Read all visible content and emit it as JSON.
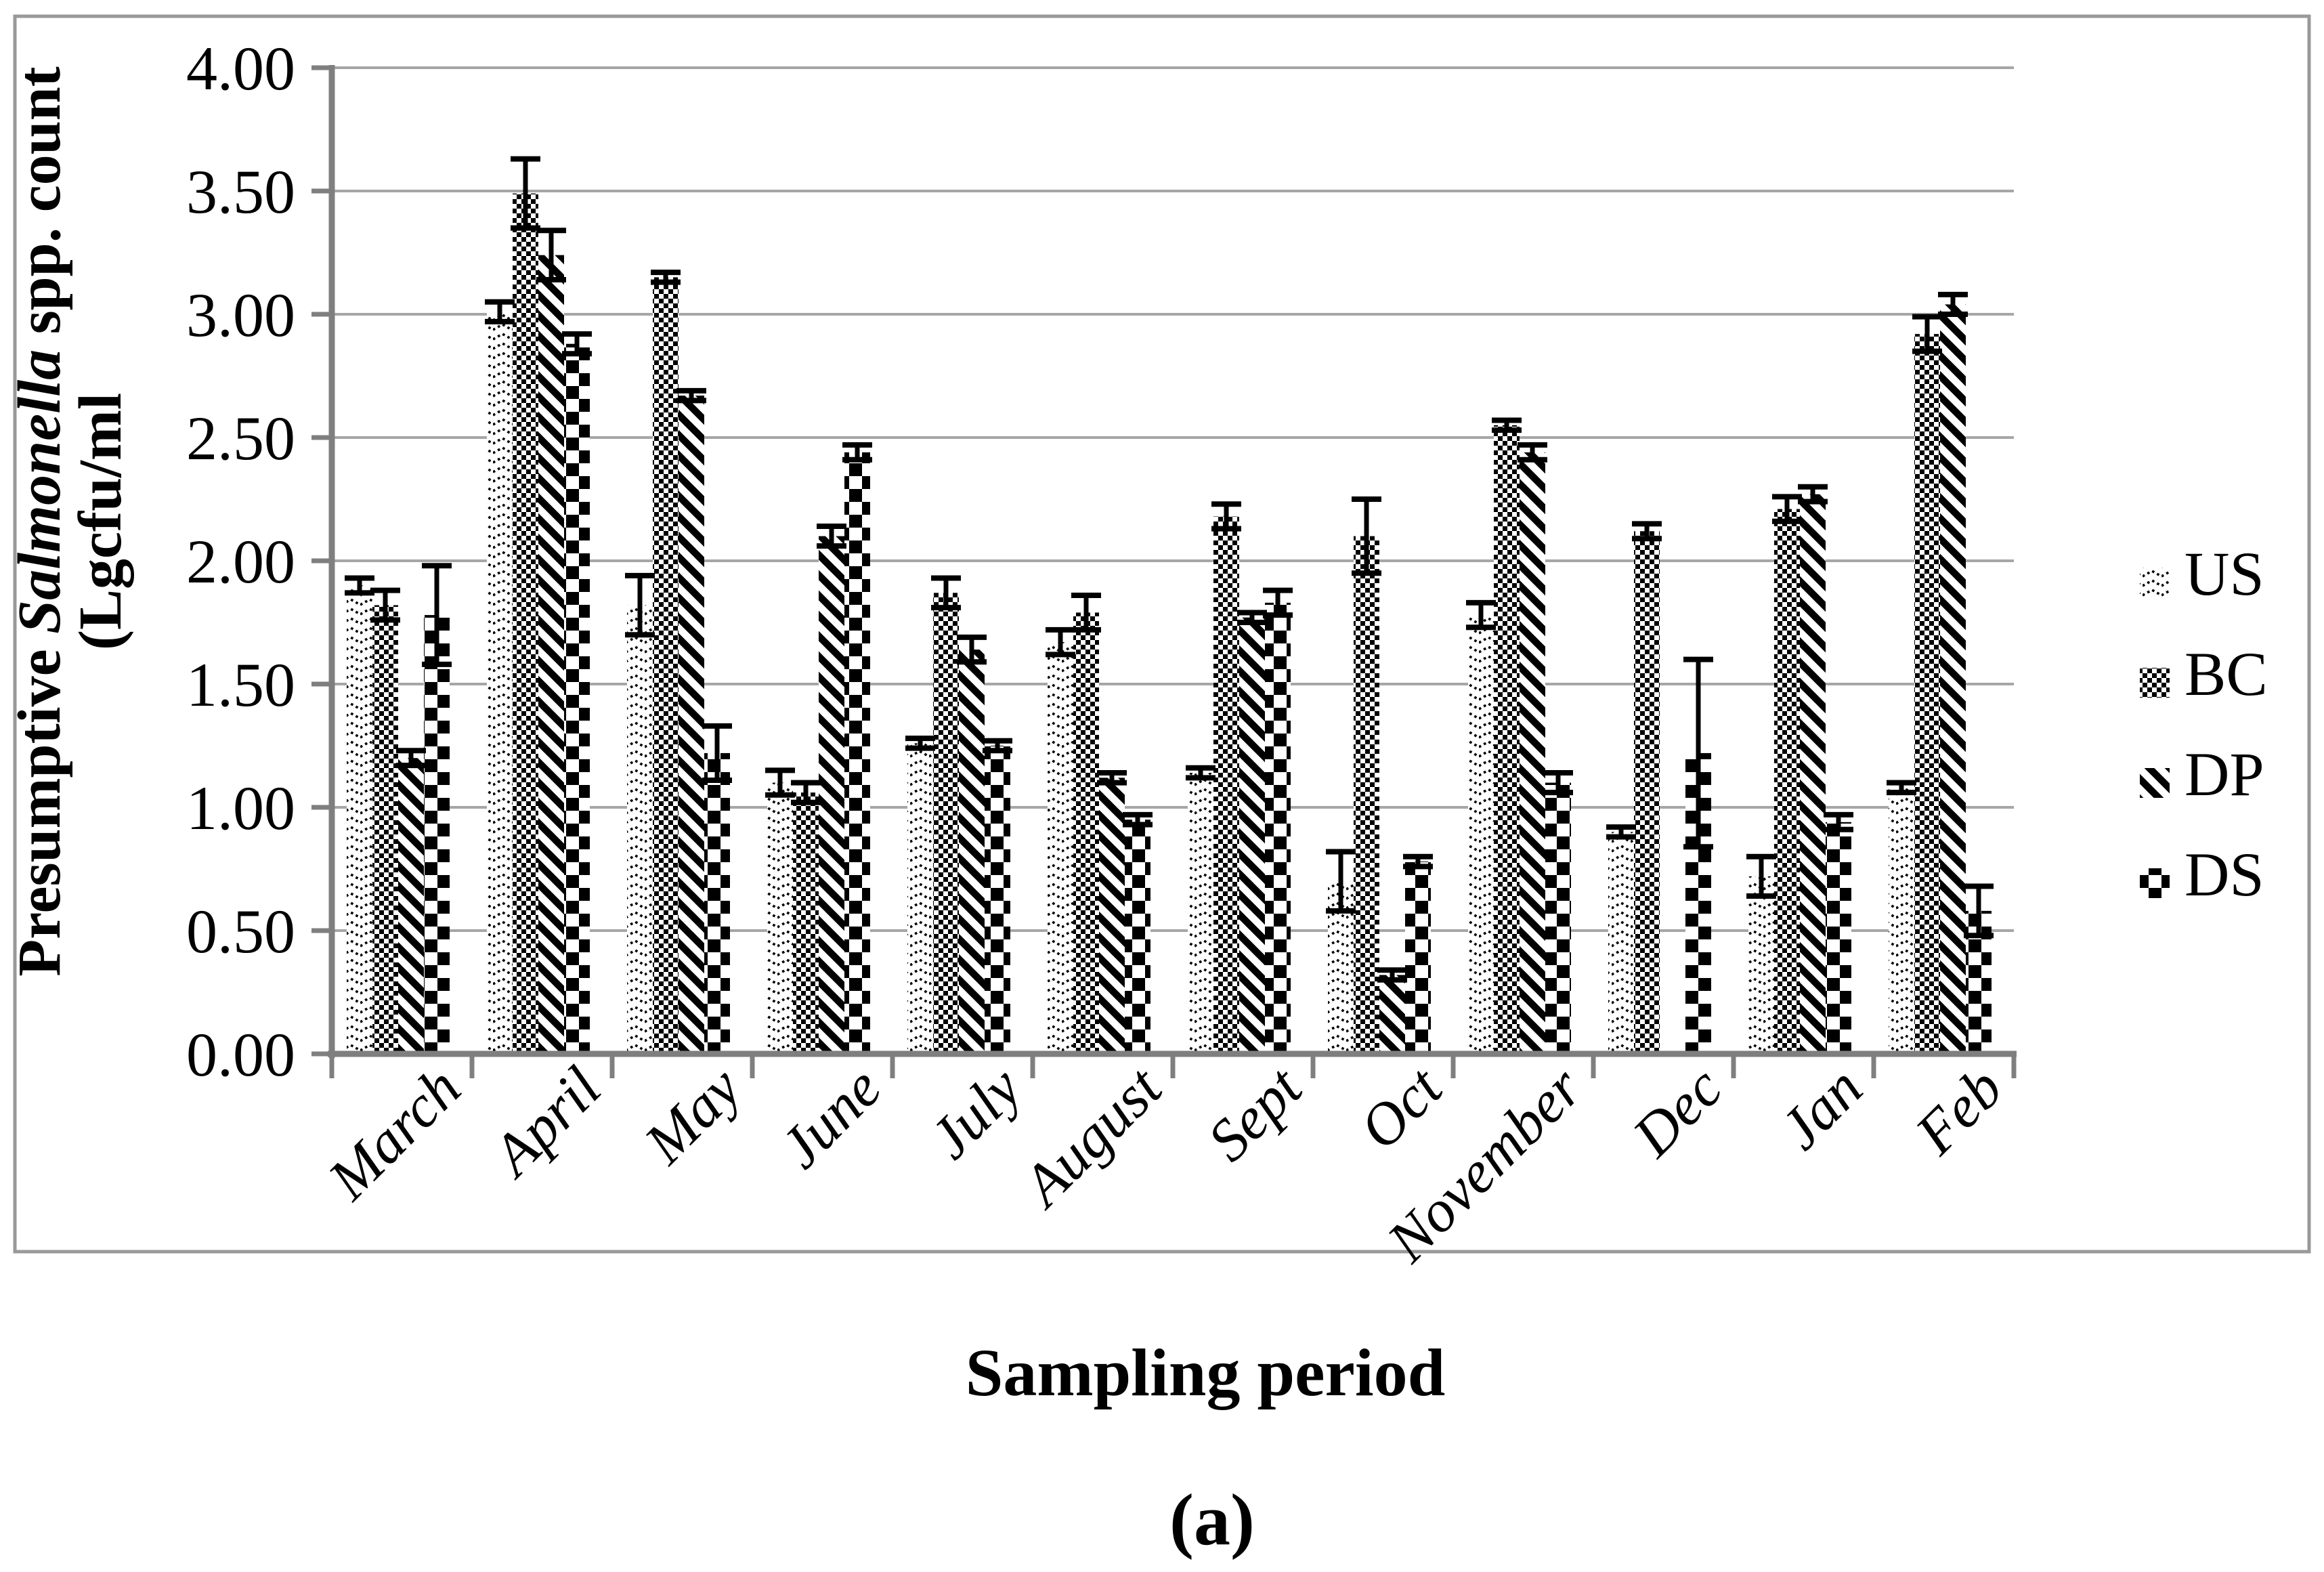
{
  "figure": {
    "caption": "(a)"
  },
  "chart_data": {
    "type": "bar",
    "title": "",
    "xlabel": "Sampling period",
    "ylabel_line1_pre": "Presumptive ",
    "ylabel_line1_italic": "Salmonella",
    "ylabel_line1_post": " spp. count",
    "ylabel_line2": "(Lgcfu/ml",
    "ylim": [
      0,
      4
    ],
    "ytick_step": 0.5,
    "ytick_labels": [
      "0.00",
      "0.50",
      "1.00",
      "1.50",
      "2.00",
      "2.50",
      "3.00",
      "3.50",
      "4.00"
    ],
    "grid": true,
    "legend_position": "right",
    "background": "#ffffff",
    "gridline_color": "#a6a6a6",
    "axis_color": "#7f7f7f",
    "bar_pattern_color": "#000000",
    "categories": [
      "March",
      "April",
      "May",
      "June",
      "July",
      "August",
      "Sept",
      "Oct",
      "November",
      "Dec",
      "Jan",
      "Feb"
    ],
    "series": [
      {
        "name": "US",
        "pattern": "pattern-us",
        "values": [
          1.9,
          3.01,
          1.82,
          1.1,
          1.26,
          1.67,
          1.14,
          0.7,
          1.78,
          0.9,
          0.72,
          1.08
        ],
        "errors": [
          0.03,
          0.04,
          0.12,
          0.05,
          0.02,
          0.05,
          0.02,
          0.12,
          0.05,
          0.02,
          0.08,
          0.02
        ]
      },
      {
        "name": "BC",
        "pattern": "pattern-bc",
        "values": [
          1.82,
          3.49,
          3.15,
          1.06,
          1.87,
          1.79,
          2.18,
          2.1,
          2.55,
          2.12,
          2.21,
          2.92
        ],
        "errors": [
          0.06,
          0.14,
          0.02,
          0.04,
          0.06,
          0.07,
          0.05,
          0.15,
          0.02,
          0.03,
          0.05,
          0.07
        ]
      },
      {
        "name": "DP",
        "pattern": "pattern-dp",
        "values": [
          1.2,
          3.24,
          2.67,
          2.1,
          1.64,
          1.12,
          1.77,
          0.32,
          2.44,
          0.0,
          2.27,
          3.04
        ],
        "errors": [
          0.03,
          0.1,
          0.02,
          0.04,
          0.05,
          0.02,
          0.02,
          0.02,
          0.03,
          0.0,
          0.03,
          0.04
        ]
      },
      {
        "name": "DS",
        "pattern": "pattern-ds",
        "values": [
          1.78,
          2.88,
          1.22,
          2.44,
          1.25,
          0.95,
          1.83,
          0.78,
          1.1,
          1.22,
          0.94,
          0.58
        ],
        "errors": [
          0.2,
          0.04,
          0.11,
          0.03,
          0.02,
          0.02,
          0.05,
          0.02,
          0.04,
          0.38,
          0.03,
          0.1
        ]
      }
    ]
  }
}
